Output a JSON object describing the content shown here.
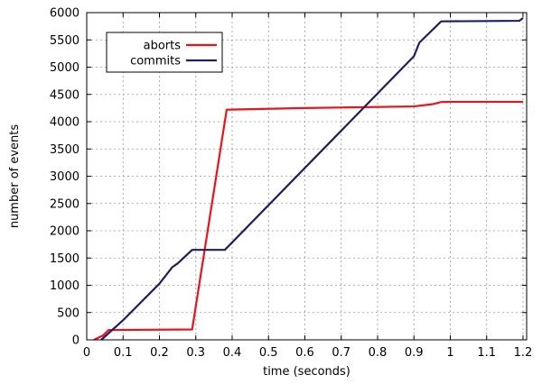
{
  "chart_data": {
    "type": "line",
    "title": "",
    "xlabel": "time (seconds)",
    "ylabel": "number of events",
    "xlim": [
      0,
      1.21
    ],
    "ylim": [
      0,
      6000
    ],
    "xticks": [
      0,
      0.1,
      0.2,
      0.3,
      0.4,
      0.5,
      0.6,
      0.7,
      0.8,
      0.9,
      1,
      1.1,
      1.2
    ],
    "yticks": [
      0,
      500,
      1000,
      1500,
      2000,
      2500,
      3000,
      3500,
      4000,
      4500,
      5000,
      5500,
      6000
    ],
    "grid": true,
    "legend_position": "top-left",
    "series": [
      {
        "name": "aborts",
        "color": "#e8141c",
        "x": [
          0.02,
          0.045,
          0.06,
          0.29,
          0.385,
          0.6,
          0.9,
          0.95,
          0.975,
          1.0,
          1.2
        ],
        "y": [
          0,
          80,
          180,
          190,
          4220,
          4250,
          4280,
          4320,
          4360,
          4365,
          4365
        ]
      },
      {
        "name": "commits",
        "color": "#1f1f5e",
        "x": [
          0.04,
          0.1,
          0.2,
          0.235,
          0.25,
          0.29,
          0.38,
          0.9,
          0.915,
          0.975,
          1.19,
          1.2
        ],
        "y": [
          0,
          360,
          1030,
          1330,
          1400,
          1650,
          1650,
          5200,
          5450,
          5840,
          5850,
          5900
        ]
      }
    ]
  }
}
